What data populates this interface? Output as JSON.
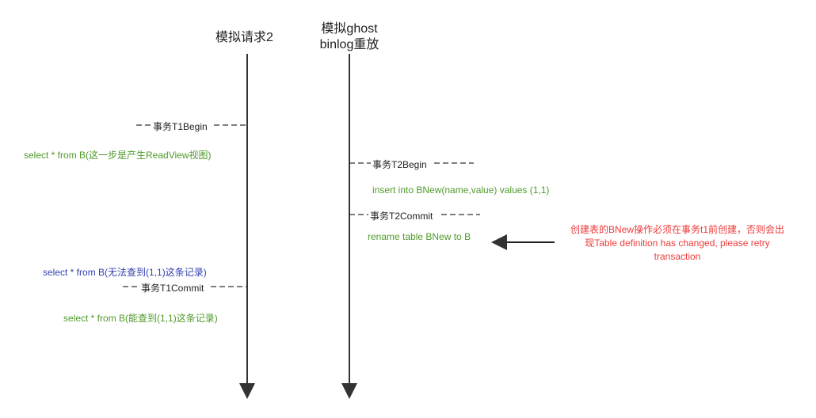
{
  "lifelines": [
    {
      "title": "模拟请求2"
    },
    {
      "title_line1": "模拟ghost",
      "title_line2": "binlog重放"
    }
  ],
  "events": {
    "t1_begin": "事务T1Begin",
    "select_readview": "select * from B(这一步是产生ReadView视图)",
    "t2_begin": "事务T2Begin",
    "insert": "insert into BNew(name,value) values (1,1)",
    "t2_commit": "事务T2Commit",
    "rename": "rename table BNew to B",
    "select_not_found": "select * from B(无法查到(1,1)这条记录)",
    "t1_commit": "事务T1Commit",
    "select_found": "select * from B(能查到(1,1)这条记录)"
  },
  "note": {
    "line1": "创建表的BNew操作必须在事务t1前创建，否则会出",
    "line2": "现Table definition has changed, please retry",
    "line3": "transaction"
  },
  "colors": {
    "green": "#4f9a2a",
    "blue": "#3340b0",
    "red": "#ee3a3a"
  }
}
